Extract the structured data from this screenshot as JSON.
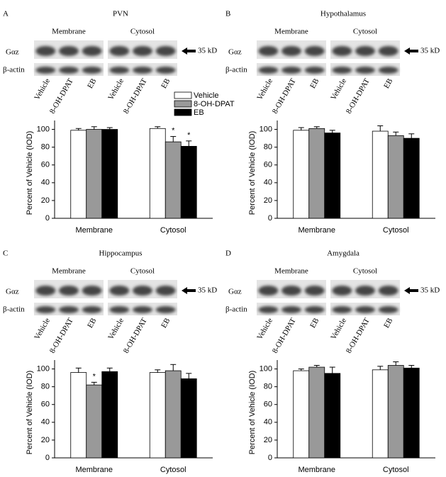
{
  "chart_data": [
    {
      "type": "bar",
      "panel": "A",
      "title": "PVN",
      "blot": {
        "groups": [
          "Membrane",
          "Cytosol"
        ],
        "rows": [
          "Gαz",
          "β-actin"
        ],
        "marker": "35 kD",
        "lanes": [
          "Vehicle",
          "8-OH-DPAT",
          "EB",
          "Vehicle",
          "8-OH-DPAT",
          "EB"
        ]
      },
      "ylabel": "Percent of Vehicle (IOD)",
      "categories": [
        "Membrane",
        "Cytosol"
      ],
      "series": [
        {
          "name": "Vehicle",
          "color": "#ffffff",
          "values": [
            99,
            101
          ],
          "errors": [
            2,
            2
          ],
          "annotations": [
            null,
            null
          ]
        },
        {
          "name": "8-OH-DPAT",
          "color": "#999999",
          "values": [
            100,
            86
          ],
          "errors": [
            3,
            6
          ],
          "annotations": [
            null,
            "*"
          ]
        },
        {
          "name": "EB",
          "color": "#000000",
          "values": [
            100,
            81
          ],
          "errors": [
            2,
            6
          ],
          "annotations": [
            null,
            "*"
          ]
        }
      ],
      "ylim": [
        0,
        110
      ],
      "yticks": [
        0,
        20,
        40,
        60,
        80,
        100
      ],
      "legend": "upper right"
    },
    {
      "type": "bar",
      "panel": "B",
      "title": "Hypothalamus",
      "blot": {
        "groups": [
          "Membrane",
          "Cytosol"
        ],
        "rows": [
          "Gαz",
          "β-actin"
        ],
        "marker": "35 kD",
        "lanes": [
          "Vehicle",
          "8-OH-DPAT",
          "EB",
          "Vehicle",
          "8-OH-DPAT",
          "EB"
        ]
      },
      "ylabel": "Percent of Vehicle (IOD)",
      "categories": [
        "Membrane",
        "Cytosol"
      ],
      "series": [
        {
          "color": "#ffffff",
          "values": [
            99,
            98
          ],
          "errors": [
            3,
            6
          ],
          "annotations": [
            null,
            null
          ]
        },
        {
          "color": "#999999",
          "values": [
            101,
            93
          ],
          "errors": [
            2,
            4
          ],
          "annotations": [
            null,
            null
          ]
        },
        {
          "color": "#000000",
          "values": [
            96,
            90
          ],
          "errors": [
            3,
            5
          ],
          "annotations": [
            null,
            null
          ]
        }
      ],
      "ylim": [
        0,
        110
      ],
      "yticks": [
        0,
        20,
        40,
        60,
        80,
        100
      ]
    },
    {
      "type": "bar",
      "panel": "C",
      "title": "Hippocampus",
      "blot": {
        "groups": [
          "Membrane",
          "Cytosol"
        ],
        "rows": [
          "Gαz",
          "β-actin"
        ],
        "marker": "35 kD",
        "lanes": [
          "Vehicle",
          "8-OH-DPAT",
          "EB",
          "Vehicle",
          "8-OH-DPAT",
          "EB"
        ]
      },
      "ylabel": "Percent of Vehicle (IOD)",
      "categories": [
        "Membrane",
        "Cytosol"
      ],
      "series": [
        {
          "color": "#ffffff",
          "values": [
            96,
            96
          ],
          "errors": [
            5,
            3
          ],
          "annotations": [
            null,
            null
          ]
        },
        {
          "color": "#999999",
          "values": [
            82,
            98
          ],
          "errors": [
            3,
            7
          ],
          "annotations": [
            "*",
            null
          ]
        },
        {
          "color": "#000000",
          "values": [
            97,
            89
          ],
          "errors": [
            4,
            6
          ],
          "annotations": [
            null,
            null
          ]
        }
      ],
      "ylim": [
        0,
        110
      ],
      "yticks": [
        0,
        20,
        40,
        60,
        80,
        100
      ]
    },
    {
      "type": "bar",
      "panel": "D",
      "title": "Amygdala",
      "blot": {
        "groups": [
          "Membrane",
          "Cytosol"
        ],
        "rows": [
          "Gαz",
          "β-actin"
        ],
        "marker": "35 kD",
        "lanes": [
          "Vehicle",
          "8-OH-DPAT",
          "EB",
          "Vehicle",
          "8-OH-DPAT",
          "EB"
        ]
      },
      "ylabel": "Percent of Vehicle (IOD)",
      "categories": [
        "Membrane",
        "Cytosol"
      ],
      "series": [
        {
          "color": "#ffffff",
          "values": [
            98,
            99
          ],
          "errors": [
            2,
            4
          ],
          "annotations": [
            null,
            null
          ]
        },
        {
          "color": "#999999",
          "values": [
            102,
            104
          ],
          "errors": [
            2,
            4
          ],
          "annotations": [
            null,
            null
          ]
        },
        {
          "color": "#000000",
          "values": [
            95,
            101
          ],
          "errors": [
            7,
            3
          ],
          "annotations": [
            null,
            null
          ]
        }
      ],
      "ylim": [
        0,
        110
      ],
      "yticks": [
        0,
        20,
        40,
        60,
        80,
        100
      ]
    }
  ]
}
